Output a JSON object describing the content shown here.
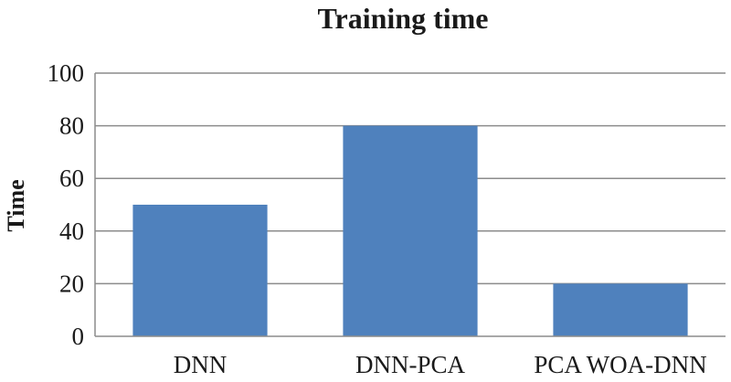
{
  "chart_data": {
    "type": "bar",
    "title": "Training time",
    "xlabel": "",
    "ylabel": "Time",
    "categories": [
      "DNN",
      "DNN-PCA",
      "PCA WOA-DNN"
    ],
    "values": [
      50,
      80,
      20
    ],
    "ylim": [
      0,
      100
    ],
    "yticks": [
      0,
      20,
      40,
      60,
      80,
      100
    ],
    "grid": true,
    "legend": "none",
    "bar_color": "#4f81bd"
  }
}
